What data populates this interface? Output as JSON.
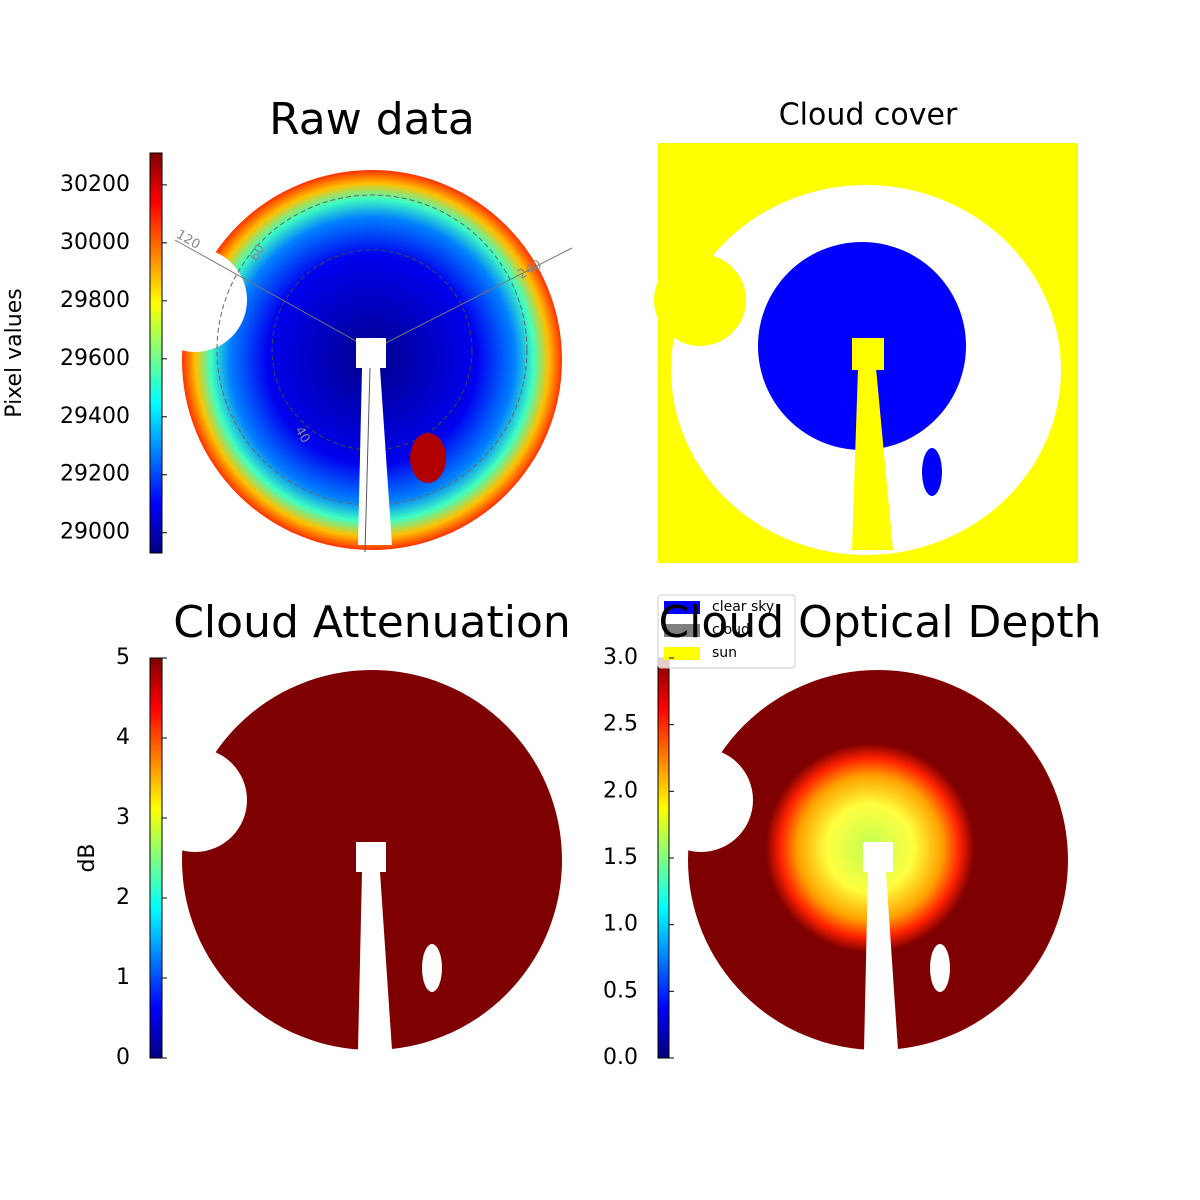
{
  "chart_data": [
    {
      "type": "image",
      "title": "Raw data",
      "colorbar": {
        "label": "Pixel values",
        "lim": [
          28930,
          30310
        ],
        "ticks": [
          29000,
          29200,
          29400,
          29600,
          29800,
          30000,
          30200
        ]
      },
      "annotations": [
        "120",
        "60",
        "240",
        "40"
      ]
    },
    {
      "type": "image",
      "title": "Cloud cover",
      "legend": [
        {
          "name": "clear sky",
          "color": "#0000ff"
        },
        {
          "name": "cloud",
          "color": "#808080"
        },
        {
          "name": "sun",
          "color": "#ffff00"
        }
      ]
    },
    {
      "type": "image",
      "title": "Cloud Attenuation",
      "colorbar": {
        "label": "dB",
        "lim": [
          0,
          5
        ],
        "ticks": [
          0,
          1,
          2,
          3,
          4,
          5
        ]
      }
    },
    {
      "type": "image",
      "title": "Cloud Optical Depth",
      "colorbar": {
        "lim": [
          0,
          3
        ],
        "ticks": [
          {
            "value": 0,
            "label": "0.0"
          },
          0.5,
          {
            "value": 1,
            "label": "1.0"
          },
          1.5,
          {
            "value": 2,
            "label": "2.0"
          },
          2.5,
          {
            "value": 3,
            "label": "3.0"
          }
        ]
      }
    }
  ]
}
